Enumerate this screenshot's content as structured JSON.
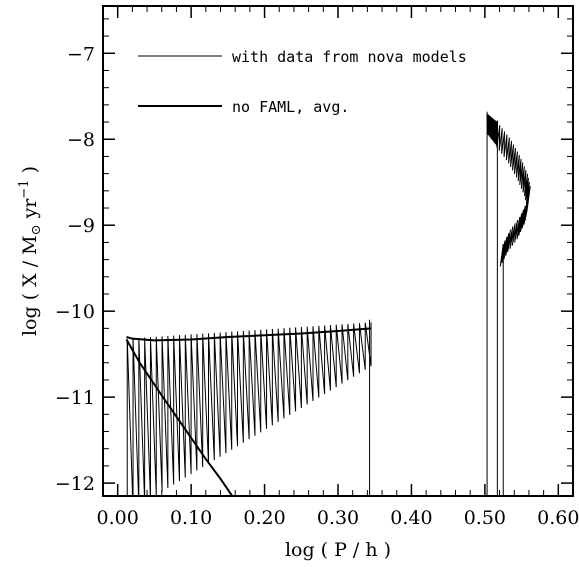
{
  "chart_data": {
    "type": "line",
    "xlabel": "log ( P / h )",
    "ylabel_parts": {
      "pre": "log ( X / M",
      "sun": "⊙",
      "mid": " yr",
      "exp": "−1",
      "post": " )"
    },
    "xlim": [
      -0.02,
      0.62
    ],
    "ylim": [
      -12.15,
      -6.45
    ],
    "x_ticks": [
      0.0,
      0.1,
      0.2,
      0.3,
      0.4,
      0.5,
      0.6
    ],
    "x_tick_labels": [
      "0.00",
      "0.10",
      "0.20",
      "0.30",
      "0.40",
      "0.50",
      "0.60"
    ],
    "y_ticks": [
      -7,
      -8,
      -9,
      -10,
      -11,
      -12
    ],
    "y_tick_labels": [
      "−7",
      "−8",
      "−9",
      "−10",
      "−11",
      "−12"
    ],
    "legend_placement": "top-left",
    "series": [
      {
        "name": "with data from nova models",
        "style": "thin",
        "segments": [
          {
            "kind": "sawtooth",
            "x_start": 0.013,
            "x_end": 0.345,
            "cycles": 42,
            "top_start": -10.32,
            "top_end": -10.13,
            "bottom_start": -12.3,
            "bottom_end": -10.6
          },
          {
            "kind": "sawtooth",
            "x_start": 0.503,
            "x_end": 0.517,
            "cycles": 10,
            "top_start": -7.7,
            "top_end": -7.8,
            "bottom_start": -7.95,
            "bottom_end": -8.1
          },
          {
            "kind": "loop_sawtooth",
            "points": [
              [
                0.517,
                -7.8
              ],
              [
                0.535,
                -8.0
              ],
              [
                0.548,
                -8.2
              ],
              [
                0.558,
                -8.4
              ],
              [
                0.562,
                -8.55
              ],
              [
                0.558,
                -8.72
              ],
              [
                0.548,
                -8.9
              ],
              [
                0.535,
                -9.05
              ],
              [
                0.525,
                -9.22
              ]
            ],
            "amplitude": 0.26,
            "cycles": 34
          },
          {
            "kind": "polyline",
            "points": [
              [
                0.013,
                -12.2
              ],
              [
                0.013,
                -10.33
              ]
            ]
          },
          {
            "kind": "polyline",
            "points": [
              [
                0.343,
                -12.2
              ],
              [
                0.343,
                -10.1
              ]
            ]
          },
          {
            "kind": "polyline",
            "points": [
              [
                0.503,
                -12.2
              ],
              [
                0.503,
                -7.68
              ]
            ]
          },
          {
            "kind": "polyline",
            "points": [
              [
                0.517,
                -12.2
              ],
              [
                0.517,
                -7.78
              ]
            ]
          },
          {
            "kind": "polyline",
            "points": [
              [
                0.525,
                -12.2
              ],
              [
                0.525,
                -9.22
              ]
            ]
          }
        ]
      },
      {
        "name": "no FAML, avg.",
        "style": "thick",
        "segments": [
          {
            "kind": "polyline",
            "points": [
              [
                0.012,
                -10.3
              ],
              [
                0.02,
                -10.32
              ],
              [
                0.05,
                -10.34
              ],
              [
                0.1,
                -10.33
              ],
              [
                0.15,
                -10.3
              ],
              [
                0.2,
                -10.28
              ],
              [
                0.25,
                -10.26
              ],
              [
                0.3,
                -10.23
              ],
              [
                0.345,
                -10.2
              ]
            ]
          },
          {
            "kind": "polyline",
            "points": [
              [
                0.012,
                -10.33
              ],
              [
                0.03,
                -10.6
              ],
              [
                0.06,
                -10.98
              ],
              [
                0.09,
                -11.35
              ],
              [
                0.12,
                -11.72
              ],
              [
                0.14,
                -11.95
              ],
              [
                0.16,
                -12.2
              ]
            ]
          }
        ]
      }
    ]
  }
}
